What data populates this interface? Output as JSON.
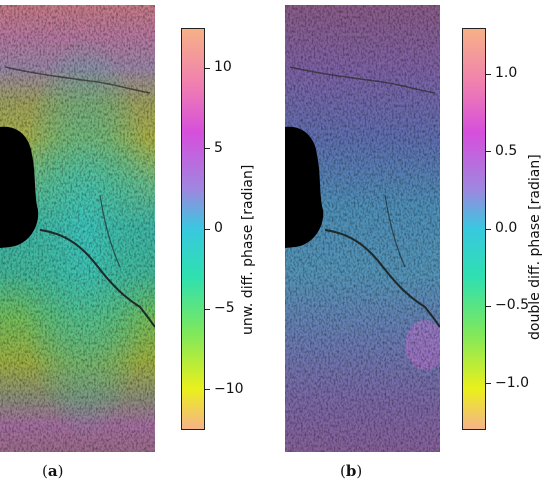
{
  "panel_a": {
    "colorbar_label": "unw. diff. phase [radian]",
    "ticks": [
      {
        "value": 10,
        "label": "10"
      },
      {
        "value": 5,
        "label": "5"
      },
      {
        "value": 0,
        "label": "0"
      },
      {
        "value": -5,
        "label": "−5"
      },
      {
        "value": -10,
        "label": "−10"
      }
    ],
    "range": [
      -12.5,
      12.5
    ],
    "caption_letter": "a"
  },
  "panel_b": {
    "colorbar_label": "double diff. phase [radian]",
    "ticks": [
      {
        "value": 1.0,
        "label": "1.0"
      },
      {
        "value": 0.5,
        "label": "0.5"
      },
      {
        "value": 0.0,
        "label": "0.0"
      },
      {
        "value": -0.5,
        "label": "−0.5"
      },
      {
        "value": -1.0,
        "label": "−1.0"
      }
    ],
    "range": [
      -1.3,
      1.3
    ],
    "caption_letter": "b"
  },
  "colormap": [
    "#f6b38a",
    "#eaf01c",
    "#7ee85c",
    "#2fe0b0",
    "#38c8e0",
    "#9f86e0",
    "#d64fdc",
    "#f07fb0",
    "#f7b187"
  ]
}
